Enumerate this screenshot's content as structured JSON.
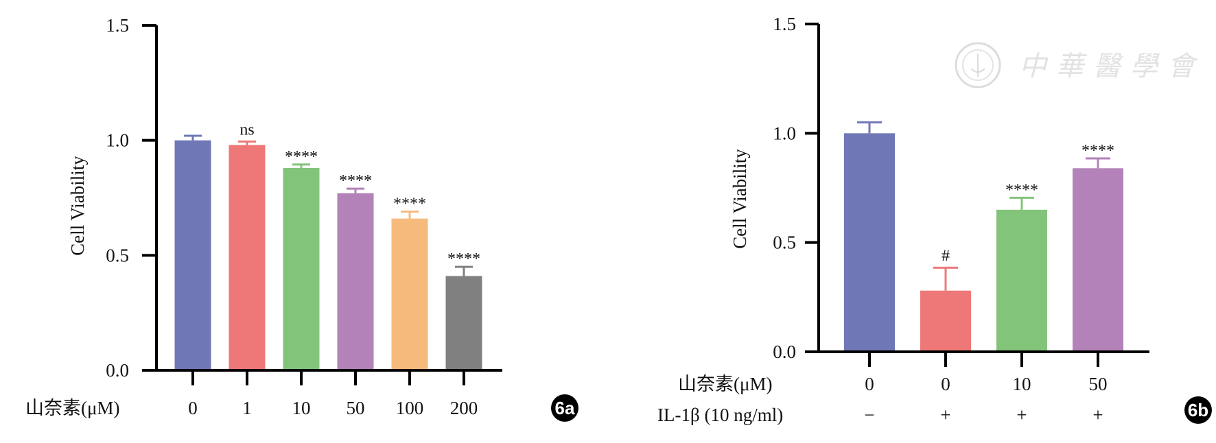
{
  "watermark": {
    "text": "中華醫學會"
  },
  "chart_data": [
    {
      "id": "6a",
      "type": "bar",
      "panel_label": "6a",
      "ylabel": "Cell Viability",
      "ylim": [
        0,
        1.5
      ],
      "yticks": [
        "0.0",
        "0.5",
        "1.0",
        "1.5"
      ],
      "ytick_values": [
        0,
        0.5,
        1.0,
        1.5
      ],
      "row_labels": [
        "山奈素(μM)"
      ],
      "categories": [
        "0",
        "1",
        "10",
        "50",
        "100",
        "200"
      ],
      "values": [
        1.0,
        0.98,
        0.88,
        0.77,
        0.66,
        0.41
      ],
      "errors": [
        0.02,
        0.015,
        0.015,
        0.02,
        0.03,
        0.04
      ],
      "annotations": [
        "",
        "ns",
        "****",
        "****",
        "****",
        "****"
      ],
      "colors": [
        "#6f77b6",
        "#ee7878",
        "#83c47b",
        "#b282b8",
        "#f5ba7c",
        "#808080"
      ]
    },
    {
      "id": "6b",
      "type": "bar",
      "panel_label": "6b",
      "ylabel": "Cell Viability",
      "ylim": [
        0,
        1.5
      ],
      "yticks": [
        "0.0",
        "0.5",
        "1.0",
        "1.5"
      ],
      "ytick_values": [
        0,
        0.5,
        1.0,
        1.5
      ],
      "row_labels": [
        "山奈素(μM)",
        "IL-1β (10 ng/ml)"
      ],
      "categories": [
        "0",
        "0",
        "10",
        "50"
      ],
      "secondary_categories": [
        "−",
        "+",
        "+",
        "+"
      ],
      "values": [
        1.0,
        0.28,
        0.65,
        0.84
      ],
      "errors": [
        0.05,
        0.105,
        0.055,
        0.045
      ],
      "annotations": [
        "",
        "#",
        "****",
        "****"
      ],
      "colors": [
        "#6f77b6",
        "#ee7878",
        "#83c47b",
        "#b282b8"
      ]
    }
  ]
}
